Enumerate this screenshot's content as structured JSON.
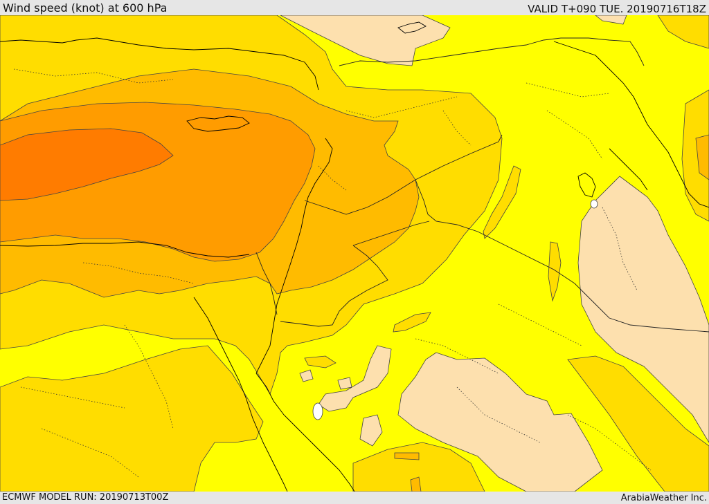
{
  "header": {
    "title": "Wind speed (knot) at 600 hPa",
    "valid": "VALID T+090 TUE. 20190716T18Z"
  },
  "footer": {
    "model_run": "ECMWF MODEL RUN: 20190713T00Z",
    "credit": "ArabiaWeather Inc."
  },
  "map": {
    "fill_colors": {
      "lowest": "#ffffff",
      "low": "#fde0ae",
      "moderate": "#ffff00",
      "elevated": "#ffdd00",
      "high": "#ffbb00",
      "higher": "#ff9c00",
      "highest": "#ff7c00"
    },
    "line_colors": {
      "contour": "#444444",
      "coastline": "#000000",
      "border": "#222222"
    }
  }
}
